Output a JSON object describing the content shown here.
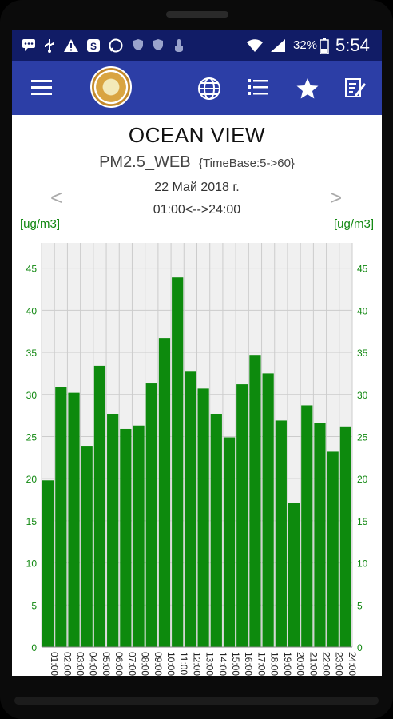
{
  "status_bar": {
    "icons": [
      "message-icon",
      "usb-icon",
      "warning-icon",
      "skype-icon",
      "whatsapp-icon",
      "shield-icon",
      "shield-icon",
      "touch-icon",
      "wifi-icon",
      "signal-icon",
      "battery-icon"
    ],
    "battery": "32%",
    "time": "5:54"
  },
  "app_bar": {
    "icons": [
      "menu-icon",
      "app-logo",
      "globe-icon",
      "list-icon",
      "star-icon",
      "edit-icon"
    ]
  },
  "header": {
    "station": "OCEAN VIEW",
    "sensor": "PM2.5_WEB",
    "timebase": "{TimeBase:5->60}",
    "date": "22 Май 2018 г.",
    "range": "01:00<-->24:00",
    "prev_arrow": "<",
    "next_arrow": ">"
  },
  "chart_data": {
    "type": "bar",
    "unit_left": "[ug/m3]",
    "unit_right": "[ug/m3]",
    "ylim": [
      0,
      48
    ],
    "yticks": [
      0,
      5,
      10,
      15,
      20,
      25,
      30,
      35,
      40,
      45
    ],
    "grid": true,
    "bar_color": "#0d8a0d",
    "grid_color": "#cccccc",
    "plot_bg": "#f0f0f0",
    "categories": [
      "01:00",
      "02:00",
      "03:00",
      "04:00",
      "05:00",
      "06:00",
      "07:00",
      "08:00",
      "09:00",
      "10:00",
      "11:00",
      "12:00",
      "13:00",
      "14:00",
      "15:00",
      "16:00",
      "17:00",
      "18:00",
      "19:00",
      "20:00",
      "21:00",
      "22:00",
      "23:00",
      "24:00"
    ],
    "values": [
      19.8,
      30.9,
      30.2,
      23.9,
      33.4,
      27.7,
      25.9,
      26.3,
      31.3,
      36.7,
      43.9,
      32.7,
      30.7,
      27.7,
      24.9,
      31.2,
      34.7,
      32.5,
      26.9,
      17.1,
      28.7,
      26.6,
      23.2,
      26.2
    ]
  }
}
